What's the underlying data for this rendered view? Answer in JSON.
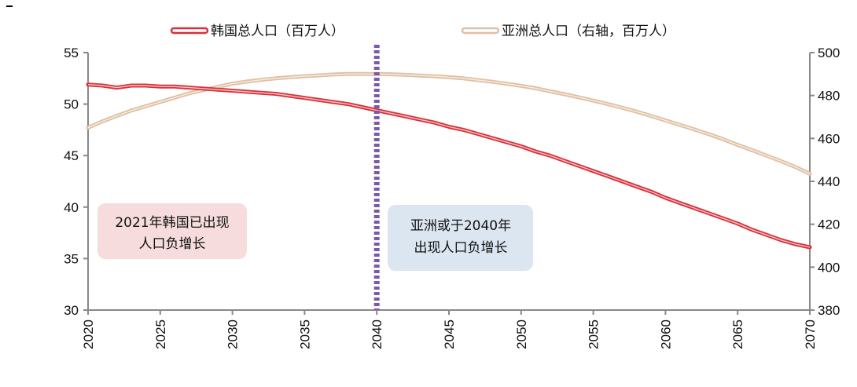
{
  "chart_data": {
    "type": "line",
    "x_ticks": [
      "2020",
      "2025",
      "2030",
      "2035",
      "2040",
      "2045",
      "2050",
      "2055",
      "2060",
      "2065",
      "2070"
    ],
    "xlim": [
      2020,
      2070
    ],
    "ylim_left": [
      30,
      55
    ],
    "yticks_left": [
      "55",
      "50",
      "45",
      "40",
      "35",
      "30"
    ],
    "ylim_right": [
      380,
      500
    ],
    "yticks_right": [
      "500",
      "480",
      "460",
      "440",
      "420",
      "400",
      "380"
    ],
    "legend_position": "top",
    "series": [
      {
        "name": "韩国总人口（百万人）",
        "axis": "left",
        "color": "#d9303a",
        "x": [
          2020,
          2021,
          2022,
          2023,
          2024,
          2025,
          2026,
          2027,
          2028,
          2029,
          2030,
          2031,
          2032,
          2033,
          2034,
          2035,
          2036,
          2037,
          2038,
          2039,
          2040,
          2041,
          2042,
          2043,
          2044,
          2045,
          2046,
          2047,
          2048,
          2049,
          2050,
          2051,
          2052,
          2053,
          2054,
          2055,
          2056,
          2057,
          2058,
          2059,
          2060,
          2061,
          2062,
          2063,
          2064,
          2065,
          2066,
          2067,
          2068,
          2069,
          2070
        ],
        "y": [
          51.9,
          51.8,
          51.6,
          51.8,
          51.8,
          51.7,
          51.7,
          51.6,
          51.5,
          51.4,
          51.3,
          51.2,
          51.1,
          51.0,
          50.8,
          50.6,
          50.4,
          50.2,
          50.0,
          49.7,
          49.4,
          49.1,
          48.8,
          48.5,
          48.2,
          47.8,
          47.5,
          47.1,
          46.7,
          46.3,
          45.9,
          45.4,
          45.0,
          44.5,
          44.0,
          43.5,
          43.0,
          42.5,
          42.0,
          41.5,
          40.9,
          40.4,
          39.9,
          39.4,
          38.9,
          38.4,
          37.8,
          37.3,
          36.8,
          36.4,
          36.1
        ]
      },
      {
        "name": "亚洲总人口（右轴，百万人）",
        "axis": "right",
        "color": "#dfc0a4",
        "x": [
          2020,
          2021,
          2022,
          2023,
          2024,
          2025,
          2026,
          2027,
          2028,
          2029,
          2030,
          2031,
          2032,
          2033,
          2034,
          2035,
          2036,
          2037,
          2038,
          2039,
          2040,
          2041,
          2042,
          2043,
          2044,
          2045,
          2046,
          2047,
          2048,
          2049,
          2050,
          2051,
          2052,
          2053,
          2054,
          2055,
          2056,
          2057,
          2058,
          2059,
          2060,
          2061,
          2062,
          2063,
          2064,
          2065,
          2066,
          2067,
          2068,
          2069,
          2070
        ],
        "y": [
          465,
          468,
          470.5,
          473,
          475,
          477,
          479,
          481,
          482.5,
          484,
          485.5,
          486.5,
          487.3,
          488,
          488.5,
          489,
          489.4,
          489.8,
          490,
          490,
          490,
          489.9,
          489.6,
          489.3,
          489,
          488.5,
          488,
          487.2,
          486.4,
          485.5,
          484.5,
          483.4,
          482,
          480.6,
          479.2,
          477.6,
          476,
          474.3,
          472.5,
          470.5,
          468.4,
          466.3,
          464.2,
          462,
          459.6,
          457,
          454.5,
          452,
          449.4,
          446.7,
          443.5
        ]
      }
    ],
    "vertical_marker": {
      "x": 2040,
      "color": "#7a5aa8"
    },
    "annotations": [
      {
        "id": "korea",
        "lines": [
          "2021年韩国已出现",
          "人口负增长"
        ],
        "fill": "#f6dcdc"
      },
      {
        "id": "asia",
        "lines": [
          "亚洲或于2040年",
          "出现人口负增长"
        ],
        "fill": "#dce6f1"
      }
    ]
  }
}
